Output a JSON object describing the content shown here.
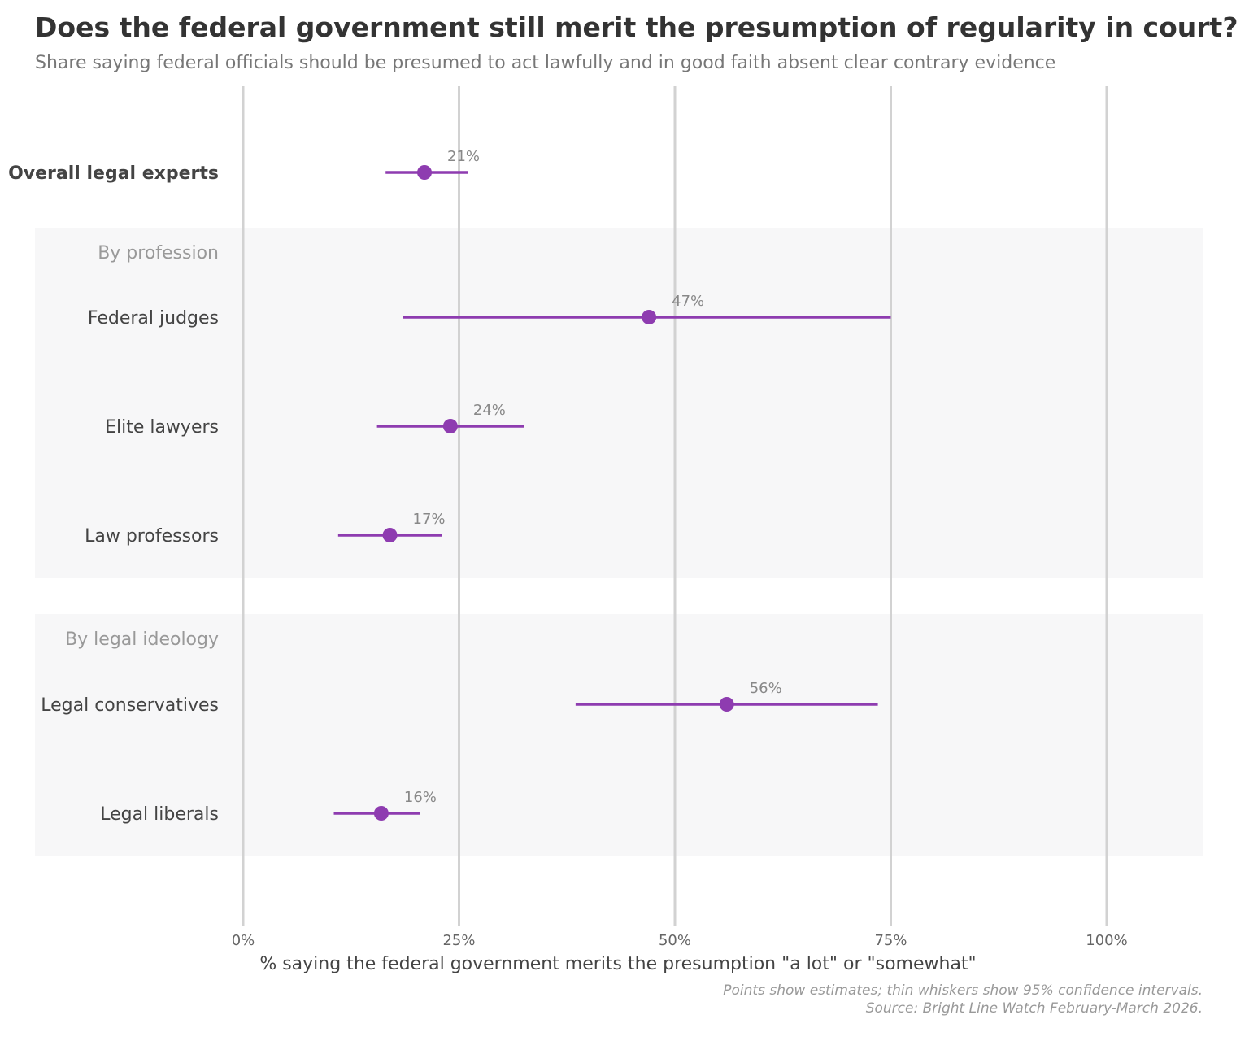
{
  "title": "Does the federal government still merit the presumption of regularity in court?",
  "subtitle": "Share saying federal officials should be presumed to act lawfully and in good faith absent clear contrary evidence",
  "caption": {
    "line1": "Points show estimates; thin whiskers show 95% confidence intervals.",
    "line2": "Source: Bright Line Watch February-March 2026."
  },
  "colors": {
    "point": "#8e3cb0",
    "grid": "#d2d2d2",
    "panel": "#f7f7f8"
  },
  "chart_data": {
    "type": "dot-with-error-bars",
    "xlabel": "% saying the federal government merits the presumption \"a lot\" or \"somewhat\"",
    "xlim": [
      0,
      100
    ],
    "xticks": [
      0,
      25,
      50,
      75,
      100
    ],
    "xtick_labels": [
      "0%",
      "25%",
      "50%",
      "75%",
      "100%"
    ],
    "grid": true,
    "groups": [
      {
        "label": "",
        "rows": [
          {
            "label": "Overall legal experts",
            "value": 21,
            "low": 16.5,
            "high": 26,
            "value_label": "21%",
            "bold": true
          }
        ]
      },
      {
        "label": "By profession",
        "rows": [
          {
            "label": "Federal judges",
            "value": 47,
            "low": 18.5,
            "high": 75,
            "value_label": "47%"
          },
          {
            "label": "Elite lawyers",
            "value": 24,
            "low": 15.5,
            "high": 32.5,
            "value_label": "24%"
          },
          {
            "label": "Law professors",
            "value": 17,
            "low": 11,
            "high": 23,
            "value_label": "17%"
          }
        ]
      },
      {
        "label": "By legal ideology",
        "rows": [
          {
            "label": "Legal conservatives",
            "value": 56,
            "low": 38.5,
            "high": 73.5,
            "value_label": "56%"
          },
          {
            "label": "Legal liberals",
            "value": 16,
            "low": 10.5,
            "high": 20.5,
            "value_label": "16%"
          }
        ]
      }
    ]
  }
}
